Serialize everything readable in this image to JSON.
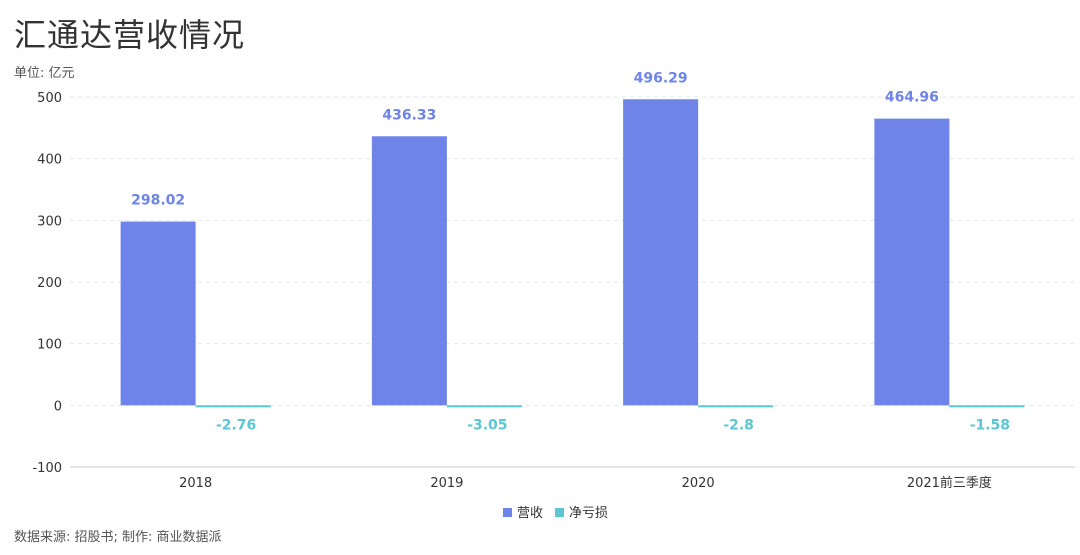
{
  "title": "汇通达营收情况",
  "unit_label": "单位: 亿元",
  "source": "数据来源: 招股书;  制作: 商业数据派",
  "colors": {
    "revenue": "#6e84e8",
    "net_loss": "#5cc6d3",
    "grid": "#e6e6e6",
    "axis": "#cccccc"
  },
  "chart_data": {
    "type": "bar",
    "categories": [
      "2018",
      "2019",
      "2020",
      "2021前三季度"
    ],
    "series": [
      {
        "name": "营收",
        "values": [
          298.02,
          436.33,
          496.29,
          464.96
        ],
        "labels": [
          "298.02",
          "436.33",
          "496.29",
          "464.96"
        ]
      },
      {
        "name": "净亏损",
        "values": [
          -2.76,
          -3.05,
          -2.8,
          -1.58
        ],
        "labels": [
          "-2.76",
          "-3.05",
          "-2.8",
          "-1.58"
        ]
      }
    ],
    "ylim": [
      -100,
      500
    ],
    "yticks": [
      500,
      400,
      300,
      200,
      100,
      0,
      -100
    ],
    "grid": true,
    "legend_position": "bottom-center"
  }
}
